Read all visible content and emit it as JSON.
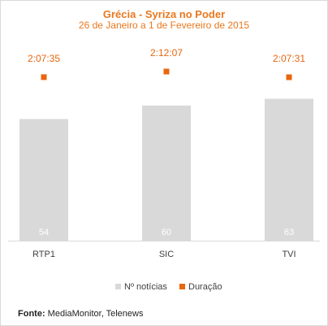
{
  "chart_data": {
    "type": "bar",
    "title": "Grécia - Syriza no Poder",
    "subtitle": "26 de Janeiro a 1 de Fevereiro de 2015",
    "categories": [
      "RTP1",
      "SIC",
      "TVI"
    ],
    "series": [
      {
        "name": "Nº notícias",
        "type": "bar",
        "values": [
          54,
          60,
          63
        ],
        "color": "#d9d9d9",
        "value_labels": [
          "54",
          "60",
          "63"
        ]
      },
      {
        "name": "Duração",
        "type": "marker",
        "values_seconds": [
          7655,
          7927,
          7651
        ],
        "labels": [
          "2:07:35",
          "2:12:07",
          "2:07:31"
        ],
        "color": "#e8660e"
      }
    ],
    "legend": "bottom-center",
    "grid": false
  },
  "source": {
    "label": "Fonte:",
    "text": " MediaMonitor, Telenews"
  }
}
